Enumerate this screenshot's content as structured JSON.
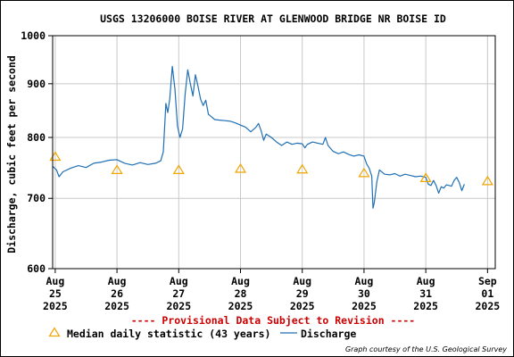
{
  "chart_data": {
    "type": "line",
    "title": "USGS 13206000 BOISE RIVER AT GLENWOOD BRIDGE NR BOISE ID",
    "ylabel": "Discharge, cubic feet per second",
    "xlabel": "",
    "y_scale": "log",
    "ylim": [
      600,
      1000
    ],
    "y_ticks": [
      {
        "value": 600,
        "label": "600"
      },
      {
        "value": 700,
        "label": "700"
      },
      {
        "value": 800,
        "label": "800"
      },
      {
        "value": 900,
        "label": "900"
      },
      {
        "value": 1000,
        "label": "1000"
      }
    ],
    "xlim": [
      "2025-08-24T23:00",
      "2025-09-01T03:00"
    ],
    "x_ticks": [
      {
        "value": "2025-08-25",
        "label": [
          "Aug",
          "25",
          "2025"
        ]
      },
      {
        "value": "2025-08-26",
        "label": [
          "Aug",
          "26",
          "2025"
        ]
      },
      {
        "value": "2025-08-27",
        "label": [
          "Aug",
          "27",
          "2025"
        ]
      },
      {
        "value": "2025-08-28",
        "label": [
          "Aug",
          "28",
          "2025"
        ]
      },
      {
        "value": "2025-08-29",
        "label": [
          "Aug",
          "29",
          "2025"
        ]
      },
      {
        "value": "2025-08-30",
        "label": [
          "Aug",
          "30",
          "2025"
        ]
      },
      {
        "value": "2025-08-31",
        "label": [
          "Aug",
          "31",
          "2025"
        ]
      },
      {
        "value": "2025-09-01",
        "label": [
          "Sep",
          "01",
          "2025"
        ]
      }
    ],
    "grid": true,
    "series": [
      {
        "name": "Discharge",
        "type": "line",
        "color": "#1f6fb4",
        "points": [
          [
            "2025-08-24T23:00",
            751
          ],
          [
            "2025-08-25T00:30",
            745
          ],
          [
            "2025-08-25T01:30",
            734
          ],
          [
            "2025-08-25T03:00",
            742
          ],
          [
            "2025-08-25T06:00",
            748
          ],
          [
            "2025-08-25T09:00",
            752
          ],
          [
            "2025-08-25T12:00",
            749
          ],
          [
            "2025-08-25T15:00",
            756
          ],
          [
            "2025-08-25T18:00",
            758
          ],
          [
            "2025-08-25T21:00",
            761
          ],
          [
            "2025-08-26T00:00",
            762
          ],
          [
            "2025-08-26T03:00",
            756
          ],
          [
            "2025-08-26T06:00",
            753
          ],
          [
            "2025-08-26T09:00",
            757
          ],
          [
            "2025-08-26T12:00",
            754
          ],
          [
            "2025-08-26T15:00",
            756
          ],
          [
            "2025-08-26T17:00",
            760
          ],
          [
            "2025-08-26T18:00",
            775
          ],
          [
            "2025-08-26T19:00",
            862
          ],
          [
            "2025-08-26T19:45",
            845
          ],
          [
            "2025-08-26T20:30",
            870
          ],
          [
            "2025-08-26T21:30",
            935
          ],
          [
            "2025-08-26T22:30",
            890
          ],
          [
            "2025-08-26T23:30",
            820
          ],
          [
            "2025-08-27T00:30",
            800
          ],
          [
            "2025-08-27T01:30",
            815
          ],
          [
            "2025-08-27T02:30",
            880
          ],
          [
            "2025-08-27T03:30",
            928
          ],
          [
            "2025-08-27T04:30",
            900
          ],
          [
            "2025-08-27T05:30",
            876
          ],
          [
            "2025-08-27T06:30",
            918
          ],
          [
            "2025-08-27T07:30",
            895
          ],
          [
            "2025-08-27T08:30",
            870
          ],
          [
            "2025-08-27T09:30",
            858
          ],
          [
            "2025-08-27T10:30",
            868
          ],
          [
            "2025-08-27T11:30",
            842
          ],
          [
            "2025-08-27T12:30",
            838
          ],
          [
            "2025-08-27T14:00",
            832
          ],
          [
            "2025-08-27T16:00",
            831
          ],
          [
            "2025-08-27T18:00",
            830
          ],
          [
            "2025-08-27T20:00",
            829
          ],
          [
            "2025-08-27T22:00",
            826
          ],
          [
            "2025-08-28T00:00",
            822
          ],
          [
            "2025-08-28T02:00",
            818
          ],
          [
            "2025-08-28T04:00",
            810
          ],
          [
            "2025-08-28T06:00",
            818
          ],
          [
            "2025-08-28T07:00",
            825
          ],
          [
            "2025-08-28T08:00",
            812
          ],
          [
            "2025-08-28T09:00",
            795
          ],
          [
            "2025-08-28T10:00",
            806
          ],
          [
            "2025-08-28T12:00",
            800
          ],
          [
            "2025-08-28T14:00",
            792
          ],
          [
            "2025-08-28T16:00",
            786
          ],
          [
            "2025-08-28T18:00",
            792
          ],
          [
            "2025-08-28T20:00",
            788
          ],
          [
            "2025-08-28T22:00",
            790
          ],
          [
            "2025-08-29T00:00",
            789
          ],
          [
            "2025-08-29T01:00",
            782
          ],
          [
            "2025-08-29T02:00",
            788
          ],
          [
            "2025-08-29T04:00",
            792
          ],
          [
            "2025-08-29T06:00",
            790
          ],
          [
            "2025-08-29T08:00",
            788
          ],
          [
            "2025-08-29T09:00",
            800
          ],
          [
            "2025-08-29T10:00",
            786
          ],
          [
            "2025-08-29T12:00",
            776
          ],
          [
            "2025-08-29T14:00",
            772
          ],
          [
            "2025-08-29T16:00",
            775
          ],
          [
            "2025-08-29T18:00",
            771
          ],
          [
            "2025-08-29T20:00",
            768
          ],
          [
            "2025-08-29T22:00",
            770
          ],
          [
            "2025-08-30T00:00",
            768
          ],
          [
            "2025-08-30T01:00",
            755
          ],
          [
            "2025-08-30T02:00",
            748
          ],
          [
            "2025-08-30T03:00",
            735
          ],
          [
            "2025-08-30T03:30",
            685
          ],
          [
            "2025-08-30T04:00",
            694
          ],
          [
            "2025-08-30T05:00",
            726
          ],
          [
            "2025-08-30T06:00",
            745
          ],
          [
            "2025-08-30T08:00",
            738
          ],
          [
            "2025-08-30T10:00",
            737
          ],
          [
            "2025-08-30T12:00",
            739
          ],
          [
            "2025-08-30T14:00",
            735
          ],
          [
            "2025-08-30T16:00",
            738
          ],
          [
            "2025-08-30T18:00",
            736
          ],
          [
            "2025-08-30T20:00",
            734
          ],
          [
            "2025-08-30T22:00",
            735
          ],
          [
            "2025-08-31T00:00",
            733
          ],
          [
            "2025-08-31T01:00",
            722
          ],
          [
            "2025-08-31T02:00",
            720
          ],
          [
            "2025-08-31T03:00",
            728
          ],
          [
            "2025-08-31T04:00",
            720
          ],
          [
            "2025-08-31T05:00",
            708
          ],
          [
            "2025-08-31T06:00",
            718
          ],
          [
            "2025-08-31T07:00",
            716
          ],
          [
            "2025-08-31T08:00",
            721
          ],
          [
            "2025-08-31T10:00",
            719
          ],
          [
            "2025-08-31T11:00",
            728
          ],
          [
            "2025-08-31T12:00",
            733
          ],
          [
            "2025-08-31T13:00",
            725
          ],
          [
            "2025-08-31T14:00",
            712
          ],
          [
            "2025-08-31T15:00",
            722
          ]
        ]
      },
      {
        "name": "Median daily statistic (43 years)",
        "type": "scatter",
        "marker": "triangle",
        "color": "#f0a500",
        "points": [
          [
            "2025-08-25T00:00",
            767
          ],
          [
            "2025-08-26T00:00",
            745
          ],
          [
            "2025-08-27T00:00",
            745
          ],
          [
            "2025-08-28T00:00",
            747
          ],
          [
            "2025-08-29T00:00",
            746
          ],
          [
            "2025-08-30T00:00",
            740
          ],
          [
            "2025-08-31T00:00",
            732
          ],
          [
            "2025-09-01T00:00",
            727
          ]
        ]
      }
    ],
    "legend_placement": "bottom",
    "annotations": [
      {
        "text": "---- Provisional Data Subject to Revision ----",
        "color": "#cc0000"
      }
    ],
    "credit": "Graph courtesy of the U.S. Geological Survey"
  }
}
